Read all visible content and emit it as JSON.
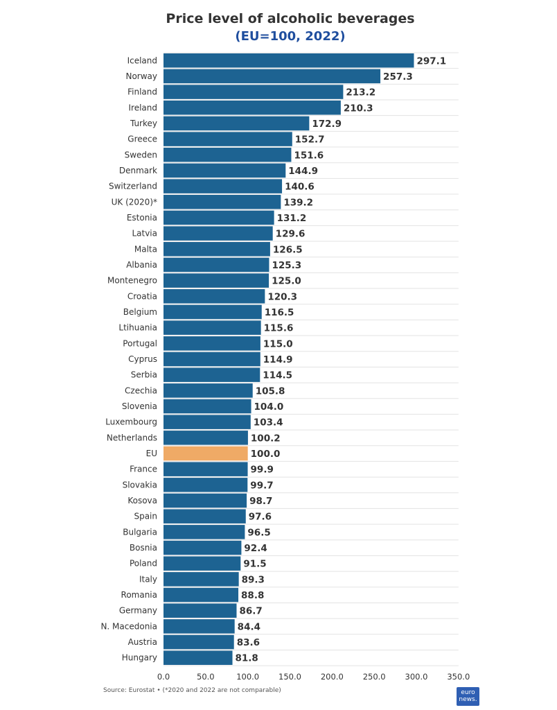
{
  "title": "Price level of alcoholic beverages",
  "subtitle": "(EU=100, 2022)",
  "source": "Source: Eurostat • (*2020 and 2022 are not comparable)",
  "logo": {
    "line1": "euro",
    "line2": "news."
  },
  "colors": {
    "bar": "#1d6392",
    "highlight": "#efaa66",
    "subtitle": "#1f4e9e",
    "grid": "#e3e3e3",
    "value_text": "#333333",
    "label_text": "#333333"
  },
  "chart_data": {
    "type": "bar",
    "orientation": "horizontal",
    "title": "Price level of alcoholic beverages",
    "subtitle": "(EU=100, 2022)",
    "categories": [
      "Iceland",
      "Norway",
      "Finland",
      "Ireland",
      "Turkey",
      "Greece",
      "Sweden",
      "Denmark",
      "Switzerland",
      "UK (2020)*",
      "Estonia",
      "Latvia",
      "Malta",
      "Albania",
      "Montenegro",
      "Croatia",
      "Belgium",
      "Ltihuania",
      "Portugal",
      "Cyprus",
      "Serbia",
      "Czechia",
      "Slovenia",
      "Luxembourg",
      "Netherlands",
      "EU",
      "France",
      "Slovakia",
      "Kosova",
      "Spain",
      "Bulgaria",
      "Bosnia",
      "Poland",
      "Italy",
      "Romania",
      "Germany",
      "N. Macedonia",
      "Austria",
      "Hungary"
    ],
    "values": [
      297.1,
      257.3,
      213.2,
      210.3,
      172.9,
      152.7,
      151.6,
      144.9,
      140.6,
      139.2,
      131.2,
      129.6,
      126.5,
      125.3,
      125.0,
      120.3,
      116.5,
      115.6,
      115.0,
      114.9,
      114.5,
      105.8,
      104.0,
      103.4,
      100.2,
      100.0,
      99.9,
      99.7,
      98.7,
      97.6,
      96.5,
      92.4,
      91.5,
      89.3,
      88.8,
      86.7,
      84.4,
      83.6,
      81.8
    ],
    "value_labels": [
      "297.1",
      "257.3",
      "213.2",
      "210.3",
      "172.9",
      "152.7",
      "151.6",
      "144.9",
      "140.6",
      "139.2",
      "131.2",
      "129.6",
      "126.5",
      "125.3",
      "125.0",
      "120.3",
      "116.5",
      "115.6",
      "115.0",
      "114.9",
      "114.5",
      "105.8",
      "104.0",
      "103.4",
      "100.2",
      "100.0",
      "99.9",
      "99.7",
      "98.7",
      "97.6",
      "96.5",
      "92.4",
      "91.5",
      "89.3",
      "88.8",
      "86.7",
      "84.4",
      "83.6",
      "81.8"
    ],
    "highlight_category": "EU",
    "xlim": [
      0,
      350
    ],
    "xticks": [
      "0.0",
      "50.0",
      "100.0",
      "150.0",
      "200.0",
      "250.0",
      "300.0",
      "350.0"
    ],
    "xtick_values": [
      0,
      50,
      100,
      150,
      200,
      250,
      300,
      350
    ],
    "grid": true,
    "legend": "none"
  }
}
